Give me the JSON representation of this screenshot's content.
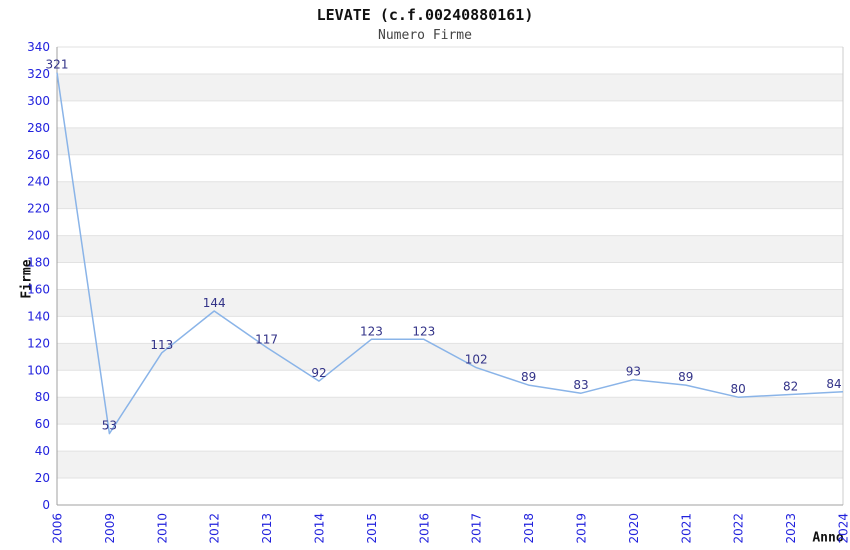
{
  "chart": {
    "title": "LEVATE (c.f.00240880161)",
    "subtitle": "Numero Firme",
    "y_axis_title": "Firme",
    "x_axis_title": "Anno"
  },
  "chart_data": {
    "type": "line",
    "title": "LEVATE (c.f.00240880161)",
    "subtitle": "Numero Firme",
    "xlabel": "Anno",
    "ylabel": "Firme",
    "categories": [
      "2006",
      "2009",
      "2010",
      "2012",
      "2013",
      "2014",
      "2015",
      "2016",
      "2017",
      "2018",
      "2019",
      "2020",
      "2021",
      "2022",
      "2023",
      "2024"
    ],
    "values": [
      321,
      53,
      113,
      144,
      117,
      92,
      123,
      123,
      102,
      89,
      83,
      93,
      89,
      80,
      82,
      84
    ],
    "data_labels_visible": true,
    "ylim": [
      0,
      340
    ],
    "ytick_step": 20,
    "grid": "horizontal-bands-alternating",
    "legend": "none",
    "markers": "none",
    "x_tick_rotation": -90,
    "colors": {
      "line": "#8ab4e8",
      "tick_label": "#2222dd",
      "data_label": "#333388",
      "band": "#f2f2f2",
      "gridline": "#e2e2e2",
      "axis": "#a0a0a0",
      "plot_border": "#cccccc",
      "background": "#ffffff"
    }
  }
}
